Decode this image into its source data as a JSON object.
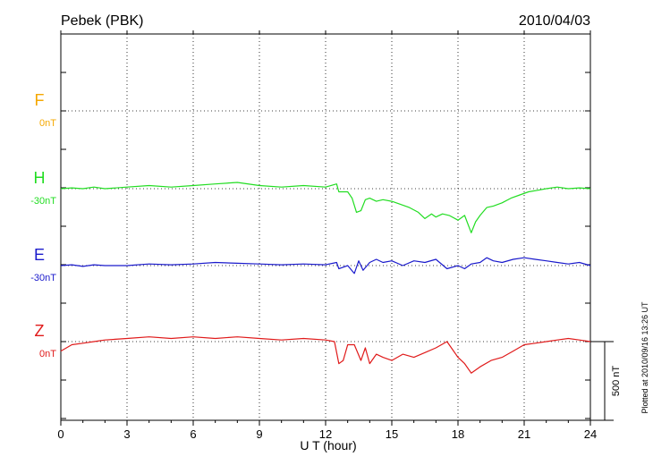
{
  "header": {
    "station": "Pebek (PBK)",
    "date": "2010/04/03"
  },
  "plotted_note": "Plotted at 2010/09/16 13:26 UT",
  "colors": {
    "F": "#f5a800",
    "H": "#22dd22",
    "E": "#1a1acc",
    "Z": "#e01a1a",
    "axis": "#000000"
  },
  "chart_data": {
    "type": "line",
    "title": "Pebek (PBK)",
    "date": "2010/04/03",
    "xlabel": "U T (hour)",
    "xlim": [
      0,
      24
    ],
    "xticks": [
      "0",
      "3",
      "6",
      "9",
      "12",
      "15",
      "18",
      "21",
      "24"
    ],
    "grid": true,
    "scale_bar": "500 nT",
    "series": [
      {
        "name": "F",
        "baseline": "0nT",
        "color": "#f5a800",
        "x": [],
        "values": []
      },
      {
        "name": "H",
        "baseline": "-30nT",
        "color": "#22dd22",
        "x": [
          0,
          0.5,
          1,
          1.5,
          2,
          3,
          4,
          5,
          6,
          7,
          8,
          9,
          10,
          11,
          12,
          12.5,
          12.6,
          13,
          13.2,
          13.4,
          13.6,
          13.8,
          14,
          14.3,
          14.6,
          15,
          15.4,
          15.8,
          16.2,
          16.5,
          16.8,
          17,
          17.3,
          17.6,
          18,
          18.3,
          18.6,
          18.8,
          19,
          19.3,
          19.6,
          20,
          20.4,
          20.8,
          21.2,
          21.6,
          22,
          22.5,
          23,
          23.5,
          24
        ],
        "values": [
          0,
          5,
          0,
          10,
          0,
          10,
          20,
          10,
          20,
          30,
          40,
          20,
          10,
          20,
          10,
          30,
          -20,
          -20,
          -60,
          -150,
          -140,
          -70,
          -60,
          -80,
          -70,
          -80,
          -100,
          -120,
          -150,
          -190,
          -160,
          -180,
          -160,
          -170,
          -200,
          -170,
          -280,
          -210,
          -170,
          -120,
          -110,
          -90,
          -60,
          -40,
          -20,
          -10,
          0,
          10,
          0,
          5,
          0
        ]
      },
      {
        "name": "E",
        "baseline": "-30nT",
        "color": "#1a1acc",
        "x": [
          0,
          0.5,
          1,
          1.5,
          2,
          3,
          4,
          5,
          6,
          7,
          8,
          9,
          10,
          11,
          12,
          12.5,
          12.6,
          13,
          13.3,
          13.5,
          13.7,
          14,
          14.3,
          14.6,
          15,
          15.5,
          16,
          16.5,
          17,
          17.5,
          18,
          18.3,
          18.6,
          19,
          19.3,
          19.6,
          20,
          20.5,
          21,
          21.5,
          22,
          22.5,
          23,
          23.5,
          24
        ],
        "values": [
          0,
          5,
          -5,
          5,
          0,
          0,
          10,
          5,
          10,
          20,
          15,
          10,
          5,
          10,
          5,
          20,
          -20,
          0,
          -50,
          30,
          -30,
          20,
          40,
          20,
          30,
          0,
          30,
          20,
          40,
          -20,
          0,
          -20,
          10,
          20,
          50,
          30,
          20,
          40,
          50,
          40,
          30,
          20,
          10,
          20,
          0
        ]
      },
      {
        "name": "Z",
        "baseline": "0nT",
        "color": "#e01a1a",
        "x": [
          0,
          0.5,
          1,
          1.5,
          2,
          3,
          4,
          5,
          6,
          7,
          8,
          9,
          10,
          11,
          12,
          12.4,
          12.6,
          12.8,
          13,
          13.3,
          13.6,
          13.8,
          14,
          14.3,
          14.6,
          15,
          15.5,
          16,
          16.5,
          17,
          17.5,
          18,
          18.3,
          18.6,
          19,
          19.5,
          20,
          20.5,
          21,
          21.5,
          22,
          22.5,
          23,
          23.5,
          24
        ],
        "values": [
          -60,
          -20,
          -10,
          0,
          10,
          20,
          30,
          20,
          30,
          20,
          30,
          20,
          10,
          20,
          10,
          0,
          -140,
          -120,
          -20,
          -20,
          -120,
          -40,
          -140,
          -80,
          -100,
          -120,
          -80,
          -100,
          -70,
          -40,
          0,
          -100,
          -140,
          -200,
          -160,
          -120,
          -100,
          -60,
          -20,
          -10,
          0,
          10,
          20,
          10,
          0
        ]
      }
    ]
  }
}
